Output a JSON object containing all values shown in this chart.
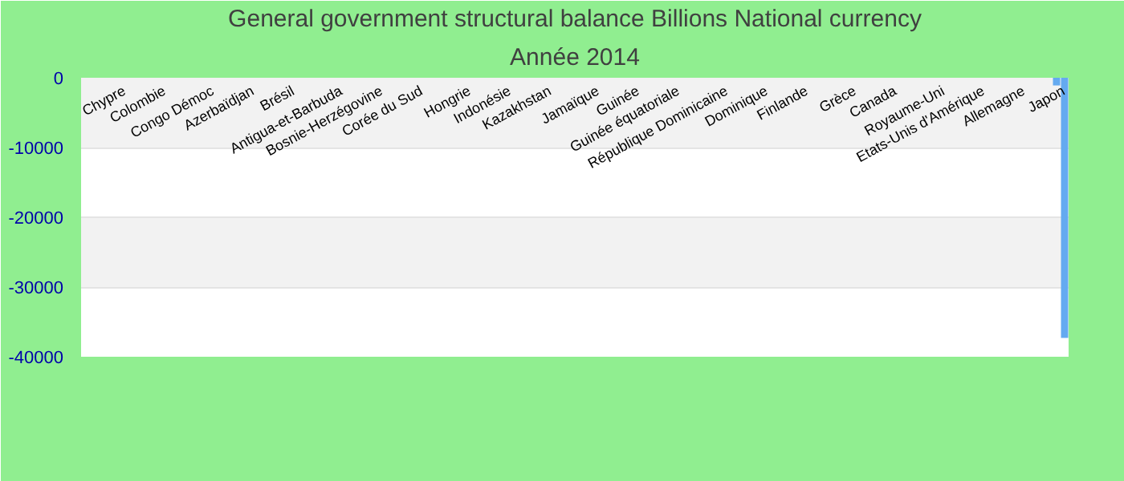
{
  "chart_data": {
    "type": "bar",
    "title": "General government structural balance Billions National currency",
    "subtitle": "Année 2014",
    "categories": [
      null,
      null,
      null,
      null,
      null,
      "Chypre",
      null,
      null,
      null,
      null,
      "Colombie",
      null,
      null,
      null,
      null,
      null,
      "Congo Démoc",
      null,
      null,
      null,
      null,
      "Azerbaïdjan",
      null,
      null,
      null,
      null,
      "Brésil",
      null,
      null,
      null,
      null,
      null,
      "Antigua-et-Barbuda",
      null,
      null,
      null,
      null,
      "Bosnie-Herzégovine",
      null,
      null,
      null,
      null,
      "Corée du Sud",
      null,
      null,
      null,
      null,
      null,
      "Hongrie",
      null,
      null,
      null,
      null,
      "Indonésie",
      null,
      null,
      null,
      null,
      "Kazakhstan",
      null,
      null,
      null,
      null,
      null,
      "Jamaïque",
      null,
      null,
      null,
      null,
      "Guinée",
      null,
      null,
      null,
      null,
      "Guinée équatoriale",
      null,
      null,
      null,
      null,
      null,
      "République Dominicaine",
      null,
      null,
      null,
      null,
      "Dominique",
      null,
      null,
      null,
      null,
      "Finlande",
      null,
      null,
      null,
      null,
      null,
      "Grèce",
      null,
      null,
      null,
      null,
      "Canada",
      null,
      null,
      null,
      null,
      null,
      "Royaume-Uni",
      null,
      null,
      null,
      null,
      "Etats-Unis d'Amérique",
      null,
      null,
      null,
      null,
      "Allemagne",
      null,
      null,
      null,
      null,
      "Japon"
    ],
    "values": [
      null,
      null,
      null,
      null,
      null,
      null,
      null,
      null,
      null,
      null,
      null,
      null,
      null,
      null,
      null,
      null,
      null,
      null,
      null,
      null,
      null,
      null,
      null,
      null,
      null,
      null,
      null,
      null,
      null,
      null,
      null,
      null,
      null,
      null,
      null,
      null,
      null,
      null,
      null,
      null,
      null,
      null,
      null,
      null,
      null,
      null,
      null,
      null,
      null,
      null,
      null,
      null,
      null,
      null,
      null,
      null,
      null,
      null,
      null,
      null,
      null,
      null,
      null,
      null,
      null,
      null,
      null,
      null,
      null,
      null,
      null,
      null,
      null,
      null,
      null,
      null,
      null,
      null,
      null,
      null,
      null,
      null,
      null,
      null,
      null,
      null,
      null,
      null,
      null,
      null,
      null,
      null,
      null,
      null,
      null,
      null,
      null,
      null,
      null,
      null,
      null,
      null,
      null,
      null,
      null,
      null,
      null,
      null,
      null,
      null,
      null,
      null,
      null,
      null,
      null,
      null,
      null,
      null,
      null,
      null,
      null,
      -1100,
      -37300
    ],
    "color": "#64aaf0",
    "ylim": [
      -40000,
      0
    ],
    "yticks": [
      -40000,
      -30000,
      -20000,
      -10000,
      0
    ],
    "grid": "y"
  }
}
